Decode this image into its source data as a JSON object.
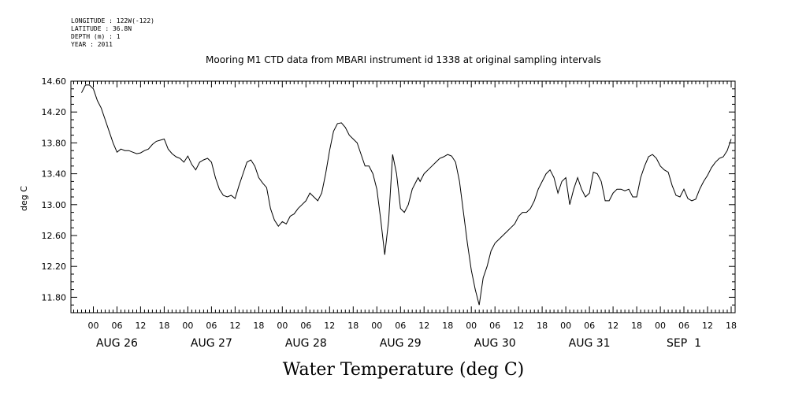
{
  "header": {
    "longitude": "LONGITUDE : 122W(-122)",
    "latitude": "LATITUDE : 36.8N",
    "depth": "DEPTH (m) : 1",
    "year": "YEAR : 2011"
  },
  "chart_data": {
    "type": "line",
    "title": "Mooring M1 CTD data from MBARI instrument id 1338 at original sampling intervals",
    "xlabel": "Water Temperature (deg C)",
    "ylabel": "deg C",
    "ylim": [
      11.6,
      14.6
    ],
    "xlim_hours": [
      -5.7,
      163
    ],
    "y_ticks": [
      "14.60",
      "14.20",
      "13.80",
      "13.40",
      "13.00",
      "12.60",
      "12.20",
      "11.80"
    ],
    "hour_ticks": [
      "00",
      "06",
      "12",
      "18"
    ],
    "day_labels": [
      "AUG 26",
      "AUG 27",
      "AUG 28",
      "AUG 29",
      "AUG 30",
      "AUG 31",
      "SEP  1"
    ],
    "x_unit_note": "x = hours since 00:00 Aug 26, 2011",
    "series": [
      {
        "x": [
          -3,
          -2,
          -1,
          0,
          1,
          2,
          3,
          4,
          5,
          6,
          7,
          8,
          9,
          10,
          11,
          12,
          13,
          14,
          15,
          16,
          18,
          19,
          20,
          21,
          22,
          23,
          24,
          25,
          26,
          27,
          28,
          29,
          30,
          31,
          32,
          33,
          34,
          35,
          36,
          37,
          38,
          39,
          40,
          41,
          42,
          43,
          44,
          45,
          46,
          47,
          48,
          49,
          50,
          51,
          52,
          53,
          54,
          55,
          56,
          57,
          58,
          59,
          60,
          61,
          62,
          63,
          64,
          65,
          66,
          67,
          68,
          69,
          70,
          71,
          72,
          73,
          74,
          75,
          76,
          77,
          78,
          79,
          80,
          81,
          82,
          82.5,
          83,
          83.5,
          84,
          85,
          86,
          87,
          88,
          89,
          90,
          91,
          92,
          93,
          94,
          95,
          96,
          97,
          98,
          99,
          100,
          101,
          102,
          103,
          104,
          105,
          106,
          107,
          108,
          109,
          110,
          111,
          112,
          113,
          114,
          115,
          116,
          117,
          118,
          119,
          120,
          121,
          122,
          123,
          124,
          125,
          126,
          127,
          128,
          129,
          130,
          131,
          132,
          133,
          134,
          135,
          136,
          137,
          138,
          139,
          140,
          141,
          142,
          143,
          144,
          145,
          146,
          147,
          148,
          149,
          150,
          151,
          152,
          153,
          154,
          155,
          156,
          157,
          158,
          159,
          160,
          161,
          162
        ],
        "y": [
          14.45,
          14.55,
          14.55,
          14.5,
          14.35,
          14.25,
          14.1,
          13.95,
          13.8,
          13.68,
          13.72,
          13.7,
          13.7,
          13.68,
          13.66,
          13.67,
          13.7,
          13.72,
          13.78,
          13.82,
          13.85,
          13.72,
          13.66,
          13.62,
          13.6,
          13.55,
          13.63,
          13.52,
          13.45,
          13.55,
          13.58,
          13.6,
          13.55,
          13.35,
          13.2,
          13.12,
          13.1,
          13.12,
          13.08,
          13.25,
          13.4,
          13.55,
          13.58,
          13.5,
          13.35,
          13.28,
          13.22,
          12.95,
          12.8,
          12.72,
          12.78,
          12.75,
          12.85,
          12.88,
          12.95,
          13.0,
          13.05,
          13.15,
          13.1,
          13.05,
          13.15,
          13.4,
          13.7,
          13.95,
          14.05,
          14.06,
          14.0,
          13.9,
          13.85,
          13.8,
          13.65,
          13.5,
          13.5,
          13.4,
          13.2,
          12.8,
          12.35,
          12.8,
          13.65,
          13.4,
          12.95,
          12.9,
          13.0,
          13.2,
          13.3,
          13.35,
          13.3,
          13.35,
          13.4,
          13.45,
          13.5,
          13.55,
          13.6,
          13.62,
          13.65,
          13.63,
          13.55,
          13.3,
          12.9,
          12.5,
          12.15,
          11.9,
          11.7,
          12.05,
          12.2,
          12.4,
          12.5,
          12.55,
          12.6,
          12.65,
          12.7,
          12.75,
          12.85,
          12.9,
          12.9,
          12.95,
          13.05,
          13.2,
          13.3,
          13.4,
          13.45,
          13.35,
          13.15,
          13.3,
          13.35,
          13.0,
          13.2,
          13.35,
          13.2,
          13.1,
          13.15,
          13.42,
          13.4,
          13.3,
          13.05,
          13.05,
          13.15,
          13.2,
          13.2,
          13.18,
          13.2,
          13.1,
          13.1,
          13.35,
          13.5,
          13.62,
          13.65,
          13.6,
          13.5,
          13.45,
          13.42,
          13.25,
          13.12,
          13.1,
          13.2,
          13.08,
          13.05,
          13.07,
          13.2,
          13.3,
          13.38,
          13.48,
          13.55,
          13.6,
          13.62,
          13.7,
          13.85
        ]
      }
    ]
  }
}
